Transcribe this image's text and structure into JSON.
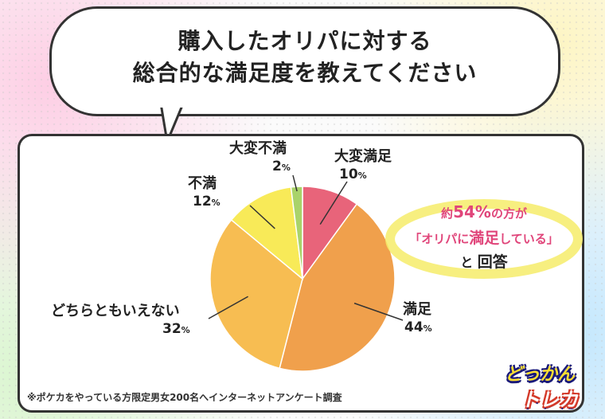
{
  "title": {
    "line1": "購入したオリパに対する",
    "line2": "総合的な満足度を教えてください"
  },
  "chart_data": {
    "type": "pie",
    "slices": [
      {
        "name": "大変満足",
        "value": 10,
        "label": "10",
        "color": "#e8647a"
      },
      {
        "name": "満足",
        "value": 44,
        "label": "44",
        "color": "#f0a04c"
      },
      {
        "name": "どちらともいえない",
        "value": 32,
        "label": "32",
        "color": "#f7bd52"
      },
      {
        "name": "不満",
        "value": 12,
        "label": "12",
        "color": "#f8ea58"
      },
      {
        "name": "大変不満",
        "value": 2,
        "label": "2",
        "color": "#a9d36a"
      }
    ],
    "unit": "%"
  },
  "callout": {
    "prefix": "約",
    "percent": "54%",
    "suffix": "の方が",
    "quote_open": "「オリパに",
    "quote_emph": "満足",
    "quote_close": "している」",
    "end_pre": "と",
    "end_emph": "回答"
  },
  "note": "※ポケカをやっている方限定男女200名へインターネットアンケート調査",
  "logo": {
    "line1": "どっかん",
    "line2": "トレカ"
  }
}
